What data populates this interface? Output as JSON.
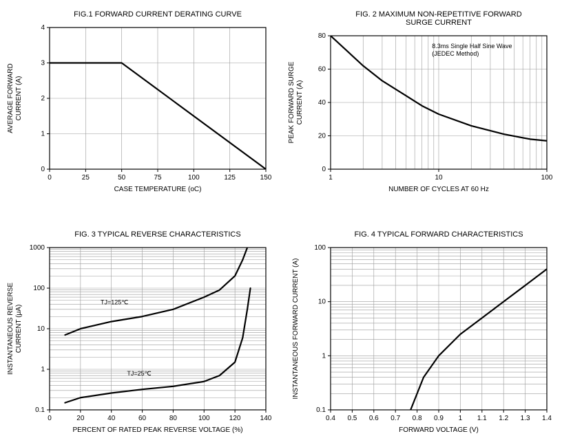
{
  "fig1": {
    "type": "line",
    "title": "FIG.1 FORWARD CURRENT DERATING CURVE",
    "xlabel": "CASE TEMPERATURE (oC)",
    "ylabel": "AVERAGE FORWARD\nCURRENT (A)",
    "xlim": [
      0,
      150
    ],
    "ylim": [
      0,
      4
    ],
    "xticks": [
      0,
      25,
      50,
      75,
      100,
      125,
      150
    ],
    "yticks": [
      0,
      1,
      2,
      3,
      4
    ],
    "series": [
      {
        "x": [
          0,
          50,
          150
        ],
        "y": [
          3,
          3,
          0
        ],
        "color": "#000000",
        "width": 2.2
      }
    ],
    "background_color": "#ffffff",
    "grid_color": "#9a9a9a",
    "border_color": "#000000",
    "title_fontsize": 11,
    "label_fontsize": 10,
    "tick_fontsize": 10
  },
  "fig2": {
    "type": "line-logx",
    "title": "FIG. 2 MAXIMUM  NON-REPETITIVE FORWARD\nSURGE CURRENT",
    "xlabel": "NUMBER OF CYCLES AT 60 Hz",
    "ylabel": "PEAK FORWARD SURGE\nCURRENT (A)",
    "xlim": [
      1,
      100
    ],
    "ylim": [
      0,
      80
    ],
    "xticks": [
      1,
      10,
      100
    ],
    "yticks": [
      0,
      20,
      40,
      60,
      80
    ],
    "annotation": "8.3ms Single Half Sine Wave\n(JEDEC Method)",
    "series": [
      {
        "x": [
          1,
          2,
          3,
          5,
          7,
          10,
          20,
          40,
          70,
          100
        ],
        "y": [
          80,
          62,
          53,
          44,
          38,
          33,
          26,
          21,
          18,
          17
        ],
        "color": "#000000",
        "width": 2.2
      }
    ],
    "background_color": "#ffffff",
    "grid_color": "#9a9a9a",
    "border_color": "#000000",
    "title_fontsize": 11,
    "label_fontsize": 10,
    "tick_fontsize": 10
  },
  "fig3": {
    "type": "line-logy",
    "title": "FIG. 3 TYPICAL REVERSE CHARACTERISTICS",
    "xlabel": "PERCENT OF RATED PEAK REVERSE VOLTAGE (%)",
    "ylabel": "INSTANTANEOUS REVERSE\nCURRENT (μA)",
    "xlim": [
      0,
      140
    ],
    "ylim": [
      0.1,
      1000
    ],
    "xticks": [
      0,
      20,
      40,
      60,
      80,
      100,
      120,
      140
    ],
    "yticks": [
      0.1,
      1,
      10,
      100,
      1000
    ],
    "series": [
      {
        "label": "TJ=125℃",
        "label_x": 42,
        "label_y": 40,
        "x": [
          10,
          20,
          40,
          60,
          80,
          100,
          110,
          120,
          125,
          128
        ],
        "y": [
          7,
          10,
          15,
          20,
          30,
          60,
          90,
          200,
          500,
          1000
        ],
        "color": "#000000",
        "width": 2.2
      },
      {
        "label": "TJ=25℃",
        "label_x": 58,
        "label_y": 0.7,
        "x": [
          10,
          20,
          40,
          60,
          80,
          100,
          110,
          120,
          125,
          128,
          130
        ],
        "y": [
          0.15,
          0.2,
          0.26,
          0.32,
          0.38,
          0.5,
          0.7,
          1.5,
          6,
          30,
          100
        ],
        "color": "#000000",
        "width": 2.2
      }
    ],
    "background_color": "#ffffff",
    "grid_color": "#9a9a9a",
    "border_color": "#000000",
    "title_fontsize": 11,
    "label_fontsize": 10,
    "tick_fontsize": 10
  },
  "fig4": {
    "type": "line-logy",
    "title": "FIG. 4 TYPICAL FORWARD CHARACTERISTICS",
    "xlabel": "FORWARD VOLTAGE (V)",
    "ylabel": "INSTANTANEOUS FORWARD CURRENT (A)",
    "xlim": [
      0.4,
      1.4
    ],
    "ylim": [
      0.1,
      100
    ],
    "xticks": [
      0.4,
      0.5,
      0.6,
      0.7,
      0.8,
      0.9,
      1.0,
      1.1,
      1.2,
      1.3,
      1.4
    ],
    "xtick_labels": [
      "0.4",
      "0.5",
      "0.6",
      "0.7",
      "0.8",
      "0.9",
      "1",
      "1.1",
      "1.2",
      "1.3",
      "1.4"
    ],
    "yticks": [
      0.1,
      1,
      10,
      100
    ],
    "series": [
      {
        "x": [
          0.77,
          0.83,
          0.9,
          1.0,
          1.1,
          1.2,
          1.3,
          1.4
        ],
        "y": [
          0.1,
          0.4,
          1,
          2.5,
          5,
          10,
          20,
          40
        ],
        "color": "#000000",
        "width": 2.2
      }
    ],
    "background_color": "#ffffff",
    "grid_color": "#9a9a9a",
    "border_color": "#000000",
    "title_fontsize": 11,
    "label_fontsize": 10,
    "tick_fontsize": 10
  }
}
